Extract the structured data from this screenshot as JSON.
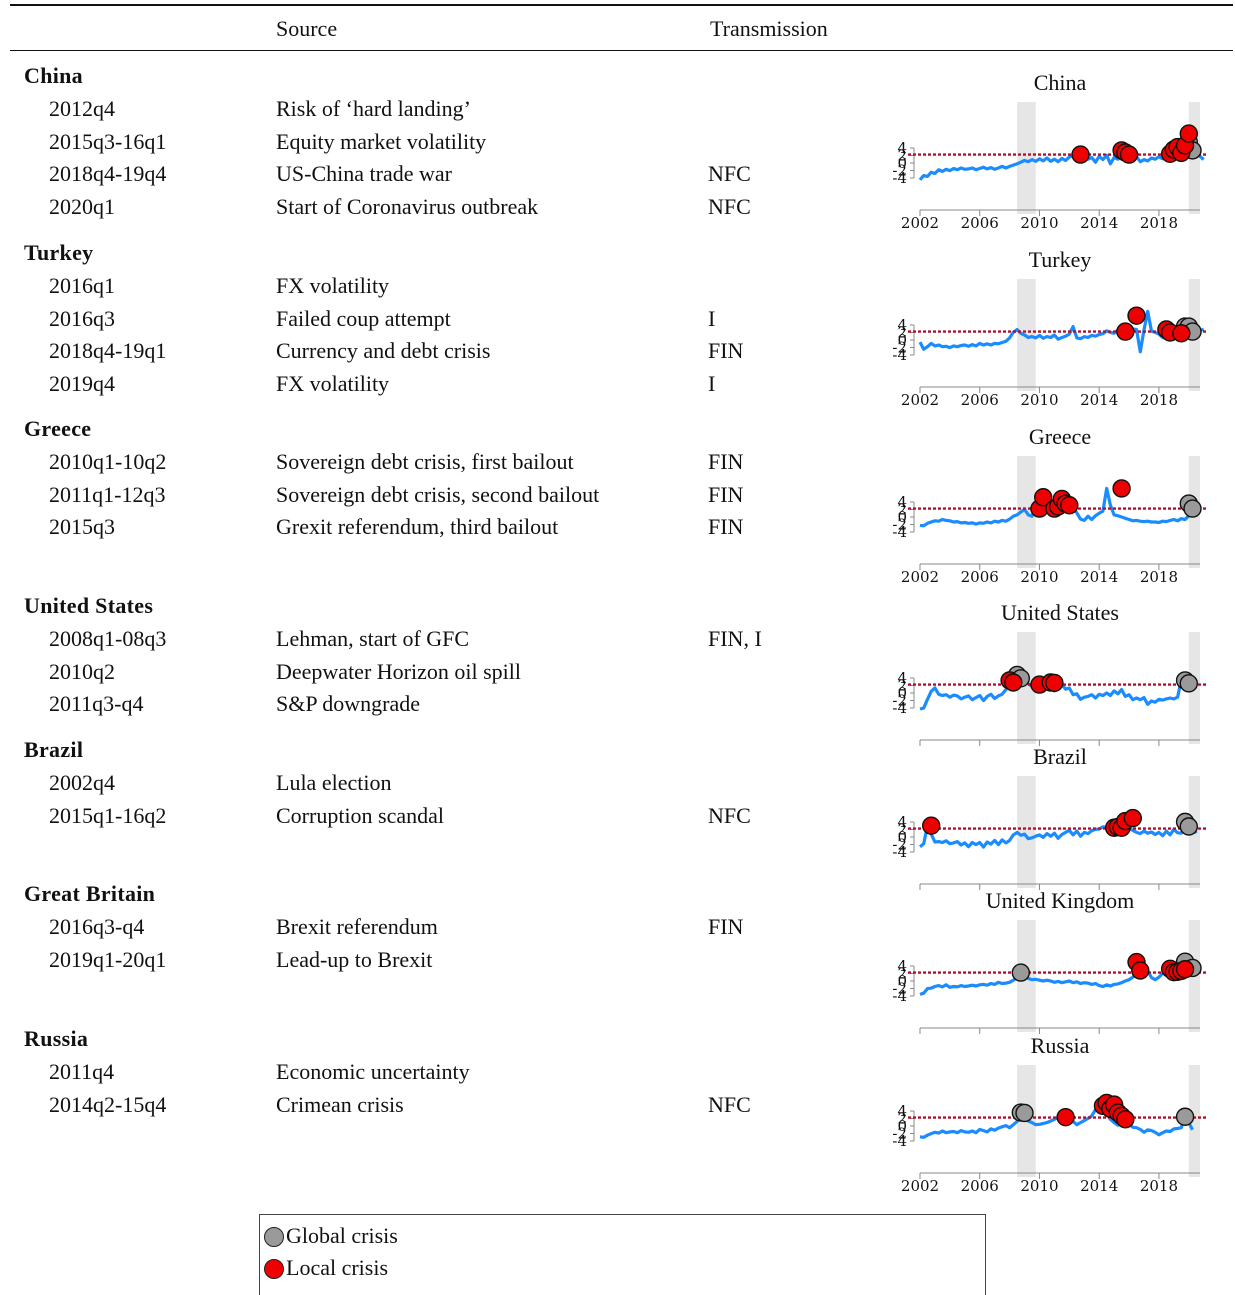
{
  "header": {
    "source": "Source",
    "transmission": "Transmission"
  },
  "colors": {
    "series": "#1a8cff",
    "threshold": "#b0122e",
    "global": "#9a9a9a",
    "local": "#ee0000",
    "shade": "#e6e6e6"
  },
  "countries": [
    {
      "name": "China",
      "chart_title": "China",
      "events": [
        {
          "date": "2012q4",
          "source": "Risk of ‘hard landing’",
          "transmission": ""
        },
        {
          "date": "2015q3-16q1",
          "source": "Equity market volatility",
          "transmission": ""
        },
        {
          "date": "2018q4-19q4",
          "source": "US-China trade war",
          "transmission": "NFC"
        },
        {
          "date": "2020q1",
          "source": "Start of Coronavirus outbreak",
          "transmission": "NFC"
        }
      ]
    },
    {
      "name": "Turkey",
      "chart_title": "Turkey",
      "events": [
        {
          "date": "2016q1",
          "source": "FX volatility",
          "transmission": ""
        },
        {
          "date": "2016q3",
          "source": "Failed coup attempt",
          "transmission": "I"
        },
        {
          "date": "2018q4-19q1",
          "source": "Currency and debt crisis",
          "transmission": "FIN"
        },
        {
          "date": "2019q4",
          "source": "FX volatility",
          "transmission": "I"
        }
      ]
    },
    {
      "name": "Greece",
      "chart_title": "Greece",
      "events": [
        {
          "date": "2010q1-10q2",
          "source": "Sovereign debt crisis, first bailout",
          "transmission": "FIN"
        },
        {
          "date": "2011q1-12q3",
          "source": "Sovereign debt crisis, second bailout",
          "transmission": "FIN"
        },
        {
          "date": "2015q3",
          "source": "Grexit referendum, third bailout",
          "transmission": "FIN"
        }
      ]
    },
    {
      "name": "United States",
      "chart_title": "United States",
      "events": [
        {
          "date": "2008q1-08q3",
          "source": "Lehman, start of GFC",
          "transmission": "FIN, I"
        },
        {
          "date": "2010q2",
          "source": "Deepwater Horizon oil spill",
          "transmission": ""
        },
        {
          "date": "2011q3-q4",
          "source": "S&P downgrade",
          "transmission": ""
        }
      ]
    },
    {
      "name": "Brazil",
      "chart_title": "Brazil",
      "events": [
        {
          "date": "2002q4",
          "source": "Lula election",
          "transmission": ""
        },
        {
          "date": "2015q1-16q2",
          "source": "Corruption scandal",
          "transmission": "NFC"
        }
      ]
    },
    {
      "name": "Great Britain",
      "chart_title": "United Kingdom",
      "events": [
        {
          "date": "2016q3-q4",
          "source": "Brexit referendum",
          "transmission": "FIN"
        },
        {
          "date": "2019q1-20q1",
          "source": "Lead-up to Brexit",
          "transmission": ""
        }
      ]
    },
    {
      "name": "Russia",
      "chart_title": "Russia",
      "events": [
        {
          "date": "2011q4",
          "source": "Economic uncertainty",
          "transmission": ""
        },
        {
          "date": "2014q2-15q4",
          "source": "Crimean crisis",
          "transmission": "NFC"
        }
      ]
    }
  ],
  "legend": [
    {
      "label": "Global crisis",
      "kind": "global"
    },
    {
      "label": "Local crisis",
      "kind": "local"
    }
  ],
  "chart_data": [
    {
      "type": "line",
      "title": "China",
      "x_ticks": [
        "2002",
        "2006",
        "2010",
        "2014",
        "2018"
      ],
      "y_ticks": [
        "4",
        "2",
        "0",
        "-2",
        "-4"
      ],
      "threshold": 2,
      "shaded": [
        [
          2008.5,
          2009.75
        ],
        [
          2020.0,
          2020.75
        ]
      ],
      "series": {
        "x_start": 2002.0,
        "x_step": 0.25,
        "values": [
          -4,
          -3,
          -3.2,
          -2.2,
          -2.5,
          -1.6,
          -2,
          -1.5,
          -1.8,
          -1.3,
          -1.6,
          -1.2,
          -1.5,
          -1.4,
          -1.2,
          -1.6,
          -1.3,
          -1,
          -1.4,
          -1.1,
          -1.5,
          -1.2,
          -0.8,
          -1.2,
          -0.8,
          -0.5,
          -0.2,
          0.2,
          0.6,
          0.3,
          0.8,
          0.4,
          1,
          0.5,
          1.2,
          0.4,
          0.9,
          0.3,
          1.1,
          0.6,
          1.4,
          1.8,
          1.2,
          0.8,
          1.5,
          0.9,
          1.3,
          0.2,
          1.6,
          0.8,
          1.8,
          -0.2,
          1.3,
          0.9,
          1.6,
          0.8,
          1.4,
          0.6,
          1.5,
          0.3,
          0.8,
          0.5,
          1.2,
          0.9,
          1.5,
          1,
          1.8,
          1.4,
          2.2,
          2.6,
          3.2,
          2.8,
          3.5,
          4.6,
          3.1,
          1.6,
          0.8
        ]
      },
      "global_points": [
        [
          2020.0,
          5
        ],
        [
          2020.25,
          3
        ]
      ],
      "local_points": [
        [
          2012.75,
          2
        ],
        [
          2015.5,
          3
        ],
        [
          2015.75,
          2.5
        ],
        [
          2016.0,
          2
        ],
        [
          2018.75,
          2.2
        ],
        [
          2019.0,
          3.2
        ],
        [
          2019.25,
          3.8
        ],
        [
          2019.5,
          2.4
        ],
        [
          2019.75,
          4.2
        ],
        [
          2020.0,
          7
        ]
      ]
    },
    {
      "type": "line",
      "title": "Turkey",
      "x_ticks": [
        "2002",
        "2006",
        "2010",
        "2014",
        "2018"
      ],
      "y_ticks": [
        "4",
        "2",
        "0",
        "-2",
        "-4"
      ],
      "threshold": 2,
      "shaded": [
        [
          2008.5,
          2009.75
        ],
        [
          2020.0,
          2020.75
        ]
      ],
      "series": {
        "x_start": 2002.0,
        "x_step": 0.25,
        "values": [
          -0.5,
          -2.2,
          -1.6,
          -0.8,
          -1.4,
          -1.2,
          -1.6,
          -1.5,
          -1.8,
          -1.4,
          -1.6,
          -1.3,
          -1.2,
          -1.5,
          -1.1,
          -1.4,
          -0.8,
          -1.2,
          -0.9,
          -1.2,
          -0.8,
          -0.9,
          -0.6,
          -0.3,
          0.5,
          1.8,
          2.5,
          1.6,
          1.2,
          0.6,
          0.8,
          0.5,
          1.1,
          0.4,
          0.8,
          0.6,
          1.2,
          0.2,
          0.6,
          0.9,
          1.4,
          3.2,
          0.5,
          0.3,
          0.8,
          0.6,
          1.1,
          0.9,
          1.3,
          1.5,
          2.2,
          1.8,
          1.6,
          2.4,
          2.1,
          2.3,
          1.8,
          2.6,
          2.5,
          -2.8,
          2.4,
          6.8,
          2.1,
          1.8,
          1.4,
          0.6,
          0.4,
          1,
          0.9,
          2.5,
          3.2,
          2.1,
          1.6,
          3.5,
          1.8,
          2.2,
          2.6
        ]
      },
      "global_points": [
        [
          2019.75,
          3.2
        ],
        [
          2020.0,
          3.2
        ],
        [
          2020.25,
          2
        ]
      ],
      "local_points": [
        [
          2015.75,
          2
        ],
        [
          2016.5,
          5.8
        ],
        [
          2018.5,
          2.5
        ],
        [
          2018.75,
          1.8
        ],
        [
          2019.5,
          1.6
        ]
      ]
    },
    {
      "type": "line",
      "title": "Greece",
      "x_ticks": [
        "2002",
        "2006",
        "2010",
        "2014",
        "2018"
      ],
      "y_ticks": [
        "4",
        "2",
        "0",
        "-2",
        "-4"
      ],
      "threshold": 2,
      "shaded": [
        [
          2008.5,
          2009.75
        ],
        [
          2020.0,
          2020.75
        ]
      ],
      "series": {
        "x_start": 2002.0,
        "x_step": 0.25,
        "values": [
          -2,
          -2.1,
          -1.5,
          -1.2,
          -0.9,
          -1,
          -0.6,
          -0.8,
          -0.9,
          -1.2,
          -1.1,
          -1.4,
          -1.3,
          -1.5,
          -1.4,
          -1.7,
          -1.4,
          -1.5,
          -1.2,
          -1.4,
          -1,
          -1.2,
          -0.8,
          -1,
          -0.5,
          0.2,
          0.5,
          1.2,
          1.8,
          0.5,
          0.2,
          2.8,
          5,
          2.5,
          3.5,
          1.5,
          4,
          2.5,
          5,
          3.2,
          2.8,
          2.2,
          1,
          -0.5,
          -0.8,
          0.2,
          -0.6,
          0.3,
          0.9,
          1.4,
          6.8,
          2.8,
          0.5,
          0.3,
          0,
          -0.3,
          -0.6,
          -0.9,
          -0.8,
          -1,
          -1.1,
          -1,
          -1.2,
          -1.2,
          -1.3,
          -1,
          -1.1,
          -0.8,
          -0.6,
          -0.9,
          -0.4,
          -0.6,
          0.3,
          3.5,
          2.2,
          2
        ]
      },
      "global_points": [
        [
          2020.0,
          3.2
        ],
        [
          2020.25,
          2
        ]
      ],
      "local_points": [
        [
          2010.0,
          2
        ],
        [
          2010.25,
          4.7
        ],
        [
          2011.0,
          2
        ],
        [
          2011.25,
          2.5
        ],
        [
          2011.5,
          4.3
        ],
        [
          2011.75,
          3.2
        ],
        [
          2012.0,
          2.8
        ],
        [
          2015.5,
          6.8
        ]
      ]
    },
    {
      "type": "line",
      "title": "United States",
      "x_ticks": [],
      "y_ticks": [
        "4",
        "2",
        "0",
        "-2",
        "-4"
      ],
      "threshold": 2,
      "shaded": [
        [
          2008.5,
          2009.75
        ],
        [
          2020.0,
          2020.75
        ]
      ],
      "series": {
        "x_start": 2002.0,
        "x_step": 0.25,
        "values": [
          -3.8,
          -3.6,
          -1.5,
          0.4,
          1.2,
          -0.3,
          -0.6,
          -0.4,
          -1,
          -0.5,
          -0.7,
          -1.4,
          -1,
          -0.7,
          -1.6,
          -1.1,
          -0.6,
          -1.8,
          -0.8,
          -0.3,
          -1.3,
          -0.7,
          -0.3,
          0.8,
          1.6,
          2.3,
          3.2,
          4.3,
          2.8,
          2.2,
          1.6,
          0.9,
          2.1,
          1.4,
          2.2,
          0.9,
          0.5,
          1.6,
          2.1,
          0.9,
          1.2,
          -0.4,
          -0.2,
          -1.5,
          -1,
          -0.8,
          -0.4,
          -1.2,
          -0.3,
          -0.6,
          0,
          -0.6,
          0.5,
          -0.2,
          0.8,
          -0.8,
          -0.4,
          -1.6,
          -1.2,
          -1.6,
          -1.1,
          -2.7,
          -1.9,
          -2.2,
          -1.5,
          -1.7,
          -1.4,
          -1.2,
          -1.4,
          -1,
          3.2,
          2.8,
          2.5
        ]
      },
      "global_points": [
        [
          2008.25,
          3.2
        ],
        [
          2008.5,
          4.3
        ],
        [
          2008.75,
          3.5
        ],
        [
          2019.75,
          3
        ],
        [
          2020.0,
          2.3
        ]
      ],
      "local_points": [
        [
          2008.0,
          3
        ],
        [
          2008.25,
          2.5
        ],
        [
          2010.0,
          2
        ],
        [
          2010.75,
          2.5
        ],
        [
          2011.0,
          2.4
        ]
      ]
    },
    {
      "type": "line",
      "title": "Brazil",
      "x_ticks": [],
      "y_ticks": [
        "4",
        "2",
        "0",
        "-2",
        "-4"
      ],
      "threshold": 2,
      "shaded": [
        [
          2008.5,
          2009.75
        ],
        [
          2020.0,
          2020.75
        ]
      ],
      "series": {
        "x_start": 2002.0,
        "x_step": 0.25,
        "values": [
          -2.3,
          -1.6,
          2.7,
          0.7,
          -1.2,
          -1.1,
          -1.3,
          -0.9,
          -1.6,
          -1.4,
          -1.1,
          -1.9,
          -1.4,
          -2.3,
          -1.3,
          -1.8,
          -1.3,
          -2.4,
          -1.2,
          -1.7,
          -0.8,
          -1.8,
          -0.7,
          -1.4,
          -0.8,
          0.5,
          1.1,
          0.4,
          0.7,
          -0.4,
          -0.2,
          0.2,
          0.5,
          -0.1,
          0.8,
          0.2,
          0.9,
          -0.3,
          0.6,
          1.1,
          1.6,
          0.5,
          1.4,
          0.2,
          1.1,
          0.8,
          1.5,
          1.8,
          1.9,
          2.4,
          2.3,
          2.8,
          3.2,
          3.8,
          4.3,
          2.9,
          2,
          1.6,
          1.1,
          0.8,
          1.4,
          0.9,
          1.2,
          0.6,
          1.1,
          0.3,
          1.4,
          0.5,
          1.8,
          1,
          0.9,
          3.5,
          2.5,
          2.2,
          0.9
        ]
      },
      "global_points": [
        [
          2019.75,
          3.6
        ],
        [
          2020.0,
          2.5
        ]
      ],
      "local_points": [
        [
          2002.75,
          2.7
        ],
        [
          2015.0,
          2.2
        ],
        [
          2015.25,
          2.4
        ],
        [
          2015.5,
          2.2
        ],
        [
          2015.75,
          3.8
        ],
        [
          2016.25,
          4.5
        ]
      ]
    },
    {
      "type": "line",
      "title": "United Kingdom",
      "x_ticks": [],
      "y_ticks": [
        "4",
        "2",
        "0",
        "-2",
        "-4"
      ],
      "threshold": 2,
      "shaded": [
        [
          2008.5,
          2009.75
        ],
        [
          2020.0,
          2020.75
        ]
      ],
      "series": {
        "x_start": 2002.0,
        "x_step": 0.25,
        "values": [
          -3.2,
          -2.9,
          -1.8,
          -1.7,
          -1.3,
          -1.1,
          -1.4,
          -0.9,
          -1.5,
          -1.3,
          -1.4,
          -1.1,
          -1.3,
          -1.2,
          -1,
          -1.2,
          -0.9,
          -0.8,
          -1,
          -0.6,
          -0.8,
          -0.3,
          -0.6,
          -0.5,
          -0.3,
          0.2,
          0.8,
          2,
          1.2,
          0.6,
          0.3,
          0.4,
          0.2,
          0,
          0.2,
          0,
          -0.3,
          -0.1,
          -0.4,
          -0.2,
          0,
          -0.4,
          -0.2,
          -0.6,
          -0.4,
          -0.5,
          -0.8,
          -0.6,
          -1.1,
          -1.3,
          -0.9,
          -1.2,
          -0.8,
          -0.7,
          -0.4,
          0,
          0.3,
          0.9,
          2,
          4.2,
          2.8,
          2.4,
          0.8,
          0.3,
          0.9,
          1.8,
          2.5,
          2.2,
          2.4,
          3.1,
          2.9,
          4.8,
          3.2,
          2.4,
          2
        ]
      },
      "global_points": [
        [
          2008.75,
          2
        ],
        [
          2019.75,
          4.6
        ],
        [
          2020.25,
          3.1
        ]
      ],
      "local_points": [
        [
          2016.5,
          4.5
        ],
        [
          2016.75,
          2.5
        ],
        [
          2018.75,
          2.9
        ],
        [
          2019.0,
          2.1
        ],
        [
          2019.25,
          2.2
        ],
        [
          2019.5,
          2.4
        ],
        [
          2019.75,
          2.8
        ]
      ]
    },
    {
      "type": "line",
      "title": "Russia",
      "x_ticks": [
        "2002",
        "2006",
        "2010",
        "2014",
        "2018"
      ],
      "y_ticks": [
        "4",
        "2",
        "0",
        "-2",
        "-4"
      ],
      "threshold": 2,
      "shaded": [
        [
          2008.5,
          2009.75
        ],
        [
          2020.0,
          2020.75
        ]
      ],
      "series": {
        "x_start": 2002.0,
        "x_step": 0.25,
        "values": [
          -2.6,
          -2.7,
          -2.2,
          -1.8,
          -1.5,
          -1.7,
          -1.2,
          -1.6,
          -1.4,
          -1.3,
          -1.6,
          -1.1,
          -1.4,
          -1.5,
          -1.2,
          -1.6,
          -0.8,
          -1.1,
          -1.4,
          -0.7,
          -1,
          -0.5,
          -0.2,
          0.1,
          -0.4,
          0.3,
          1.1,
          3.2,
          2.4,
          1.2,
          0.8,
          0.3,
          0.4,
          0.6,
          0.8,
          1.2,
          1.6,
          2,
          0.6,
          1.4,
          0.9,
          1.1,
          0.3,
          0.8,
          1.3,
          1.8,
          2.4,
          3.9,
          5,
          4.2,
          2.9,
          1.6,
          0.8,
          0.2,
          0.5,
          0.1,
          0.4,
          -0.3,
          -0.4,
          -0.8,
          -1.5,
          -0.9,
          -1.1,
          -1.5,
          -2.1,
          -1.6,
          -1.2,
          -1.3,
          -0.7,
          -0.6,
          -0.4,
          2.5,
          0.8,
          -0.9
        ]
      },
      "global_points": [
        [
          2008.75,
          3.2
        ],
        [
          2009.0,
          3.1
        ],
        [
          2019.75,
          2.2
        ]
      ],
      "local_points": [
        [
          2011.75,
          2.1
        ],
        [
          2014.25,
          4.8
        ],
        [
          2014.5,
          5.5
        ],
        [
          2014.75,
          4.1
        ],
        [
          2015.0,
          5.1
        ],
        [
          2015.25,
          3.2
        ],
        [
          2015.5,
          2.4
        ],
        [
          2015.75,
          1.6
        ]
      ]
    }
  ]
}
